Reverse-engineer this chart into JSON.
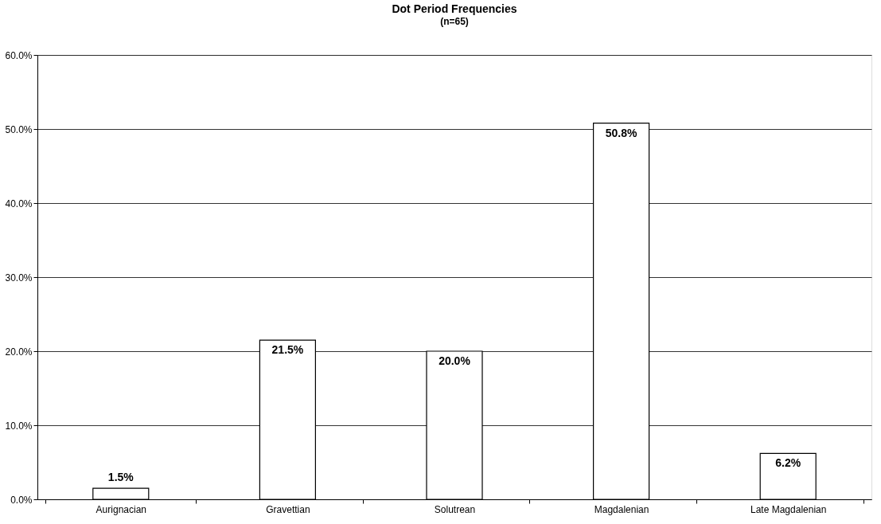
{
  "chart_data": {
    "type": "bar",
    "title": "Dot Period Frequencies",
    "subtitle": "(n=65)",
    "categories": [
      "Aurignacian",
      "Gravettian",
      "Solutrean",
      "Magdalenian",
      "Late Magdalenian"
    ],
    "values": [
      1.5,
      21.5,
      20.0,
      50.8,
      6.2
    ],
    "value_labels": [
      "1.5%",
      "21.5%",
      "20.0%",
      "50.8%",
      "6.2%"
    ],
    "color": "#ffffff",
    "ylim": [
      0,
      60
    ],
    "yticks": [
      {
        "value": 0,
        "label": "0.0%"
      },
      {
        "value": 10,
        "label": "10.0%"
      },
      {
        "value": 20,
        "label": "20.0%"
      },
      {
        "value": 30,
        "label": "30.0%"
      },
      {
        "value": 40,
        "label": "40.0%"
      },
      {
        "value": 50,
        "label": "50.0%"
      },
      {
        "value": 60,
        "label": "60.0%"
      }
    ],
    "grid": "y"
  }
}
